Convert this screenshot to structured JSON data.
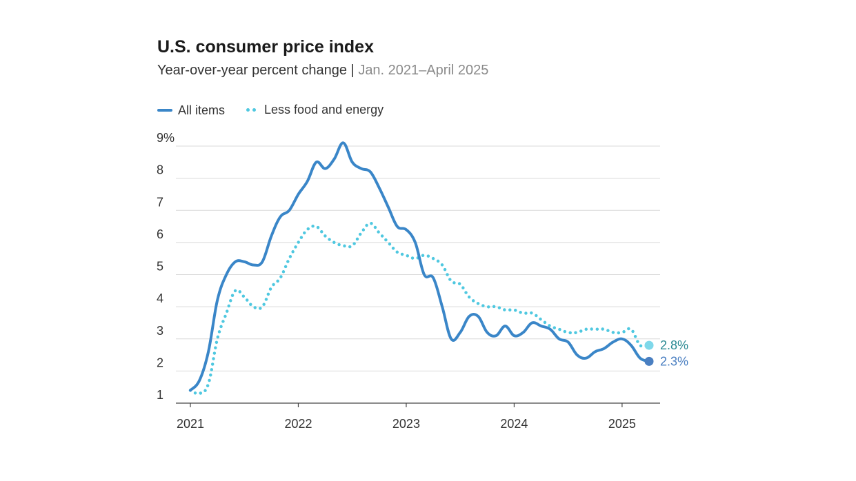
{
  "chart_data": {
    "type": "line",
    "title": "U.S. consumer price index",
    "subtitle": "Year-over-year percent change",
    "subtitle_separator": "|",
    "subtitle_range": "Jan. 2021–April 2025",
    "ylim": [
      1,
      9
    ],
    "y_ticks": [
      {
        "value": 9,
        "label": "9%"
      },
      {
        "value": 8,
        "label": "8"
      },
      {
        "value": 7,
        "label": "7"
      },
      {
        "value": 6,
        "label": "6"
      },
      {
        "value": 5,
        "label": "5"
      },
      {
        "value": 4,
        "label": "4"
      },
      {
        "value": 3,
        "label": "3"
      },
      {
        "value": 2,
        "label": "2"
      },
      {
        "value": 1,
        "label": "1"
      }
    ],
    "x_ticks": [
      {
        "index": 0,
        "label": "2021"
      },
      {
        "index": 12,
        "label": "2022"
      },
      {
        "index": 24,
        "label": "2023"
      },
      {
        "index": 36,
        "label": "2024"
      },
      {
        "index": 48,
        "label": "2025"
      }
    ],
    "xlim": [
      0,
      52
    ],
    "legend_position": "top-left",
    "series": [
      {
        "name": "All items",
        "style": "solid",
        "color": "#3a86c8",
        "end_label": "2.3%",
        "label_color": "#4a7fc1",
        "values": [
          1.4,
          1.7,
          2.6,
          4.2,
          5.0,
          5.4,
          5.4,
          5.3,
          5.4,
          6.2,
          6.8,
          7.0,
          7.5,
          7.9,
          8.5,
          8.3,
          8.6,
          9.1,
          8.5,
          8.3,
          8.2,
          7.7,
          7.1,
          6.5,
          6.4,
          6.0,
          5.0,
          4.9,
          4.0,
          3.0,
          3.2,
          3.7,
          3.7,
          3.2,
          3.1,
          3.4,
          3.1,
          3.2,
          3.5,
          3.4,
          3.3,
          3.0,
          2.9,
          2.5,
          2.4,
          2.6,
          2.7,
          2.9,
          3.0,
          2.8,
          2.4,
          2.3
        ]
      },
      {
        "name": "Less food and energy",
        "style": "dotted",
        "color": "#4fc8e0",
        "end_label": "2.8%",
        "label_color": "#2b8a93",
        "values": [
          1.4,
          1.3,
          1.6,
          3.0,
          3.8,
          4.5,
          4.3,
          4.0,
          4.0,
          4.6,
          4.9,
          5.5,
          6.0,
          6.4,
          6.5,
          6.2,
          6.0,
          5.9,
          5.9,
          6.3,
          6.6,
          6.3,
          6.0,
          5.7,
          5.6,
          5.5,
          5.6,
          5.5,
          5.3,
          4.8,
          4.7,
          4.3,
          4.1,
          4.0,
          4.0,
          3.9,
          3.9,
          3.8,
          3.8,
          3.6,
          3.4,
          3.3,
          3.2,
          3.2,
          3.3,
          3.3,
          3.3,
          3.2,
          3.2,
          3.3,
          2.8,
          2.8
        ]
      }
    ]
  }
}
